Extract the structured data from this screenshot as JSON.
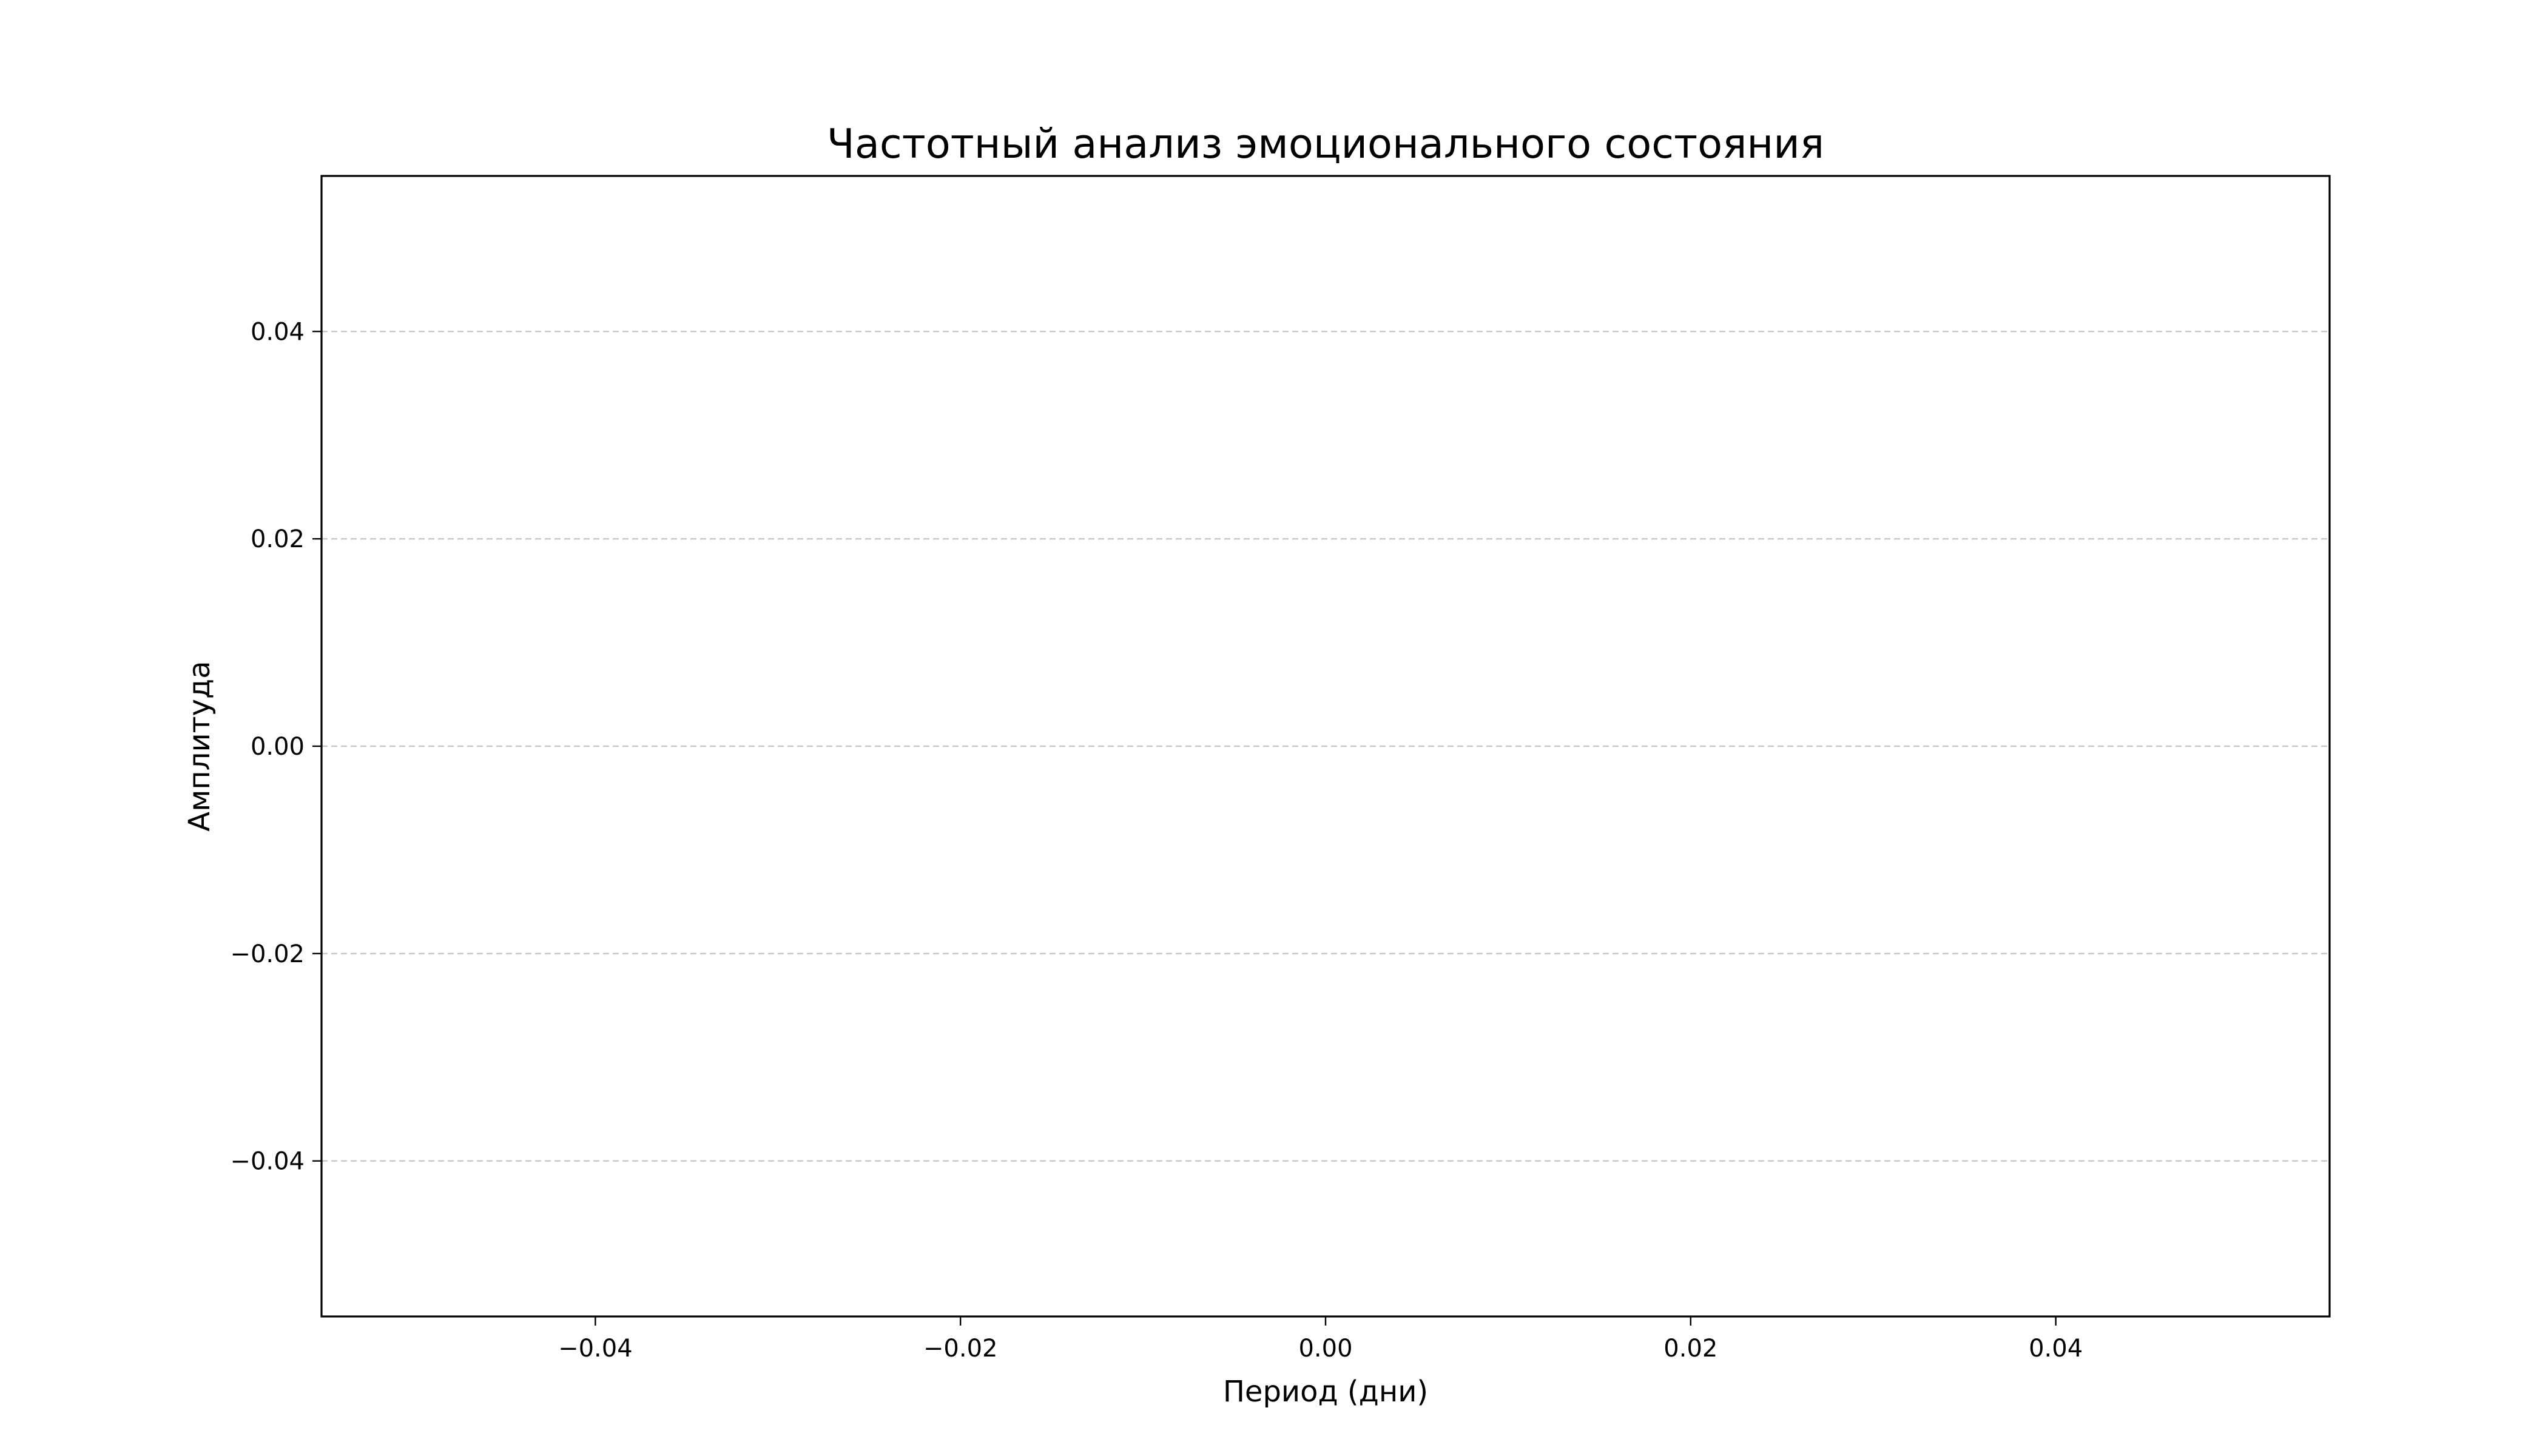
{
  "chart_data": {
    "type": "line",
    "title": "Частотный анализ эмоционального состояния",
    "xlabel": "Период (дни)",
    "ylabel": "Амплитуда",
    "xlim": [
      -0.055,
      0.055
    ],
    "ylim": [
      -0.055,
      0.055
    ],
    "xticks": [
      -0.04,
      -0.02,
      0.0,
      0.02,
      0.04
    ],
    "xtick_labels": [
      "−0.04",
      "−0.02",
      "0.00",
      "0.02",
      "0.04"
    ],
    "yticks": [
      -0.04,
      -0.02,
      0.0,
      0.02,
      0.04
    ],
    "ytick_labels": [
      "−0.04",
      "−0.02",
      "0.00",
      "0.02",
      "0.04"
    ],
    "grid": {
      "x": false,
      "y": true,
      "style": "dashed",
      "color": "#c8c8c8"
    },
    "series": [],
    "legend": "none"
  }
}
